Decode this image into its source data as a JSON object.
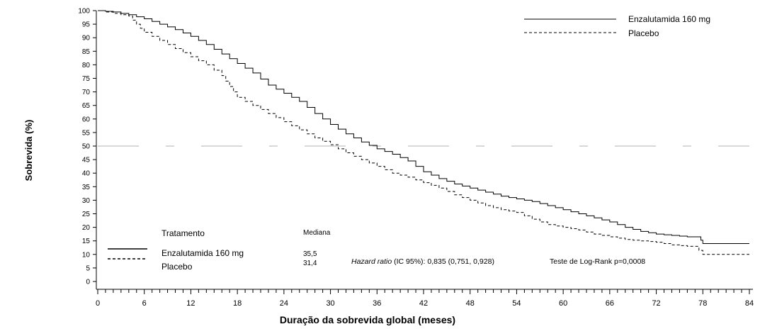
{
  "chart_data": {
    "type": "line",
    "xlabel": "Duração da sobrevida global (meses)",
    "ylabel": "Sobrevida (%)",
    "xlim": [
      0,
      84
    ],
    "ylim": [
      0,
      100
    ],
    "x_ticks": [
      0,
      6,
      12,
      18,
      24,
      30,
      36,
      42,
      48,
      54,
      60,
      66,
      72,
      78,
      84
    ],
    "y_ticks": [
      0,
      5,
      10,
      15,
      20,
      25,
      30,
      35,
      40,
      45,
      50,
      55,
      60,
      65,
      70,
      75,
      80,
      85,
      90,
      95,
      100
    ],
    "reference_line_y": 50,
    "legend_placement": "top-right",
    "series": [
      {
        "name": "Enzalutamida 160 mg",
        "line_style": "solid",
        "color": "#000000",
        "median": "35,5",
        "points": [
          [
            0,
            100
          ],
          [
            2,
            99.5
          ],
          [
            4,
            98.5
          ],
          [
            6,
            97
          ],
          [
            8,
            95
          ],
          [
            10,
            93
          ],
          [
            12,
            90.5
          ],
          [
            14,
            87.5
          ],
          [
            16,
            84
          ],
          [
            18,
            80.5
          ],
          [
            20,
            77
          ],
          [
            22,
            72.5
          ],
          [
            24,
            69.5
          ],
          [
            26,
            66.5
          ],
          [
            28,
            62
          ],
          [
            30,
            58
          ],
          [
            32,
            54.5
          ],
          [
            34,
            51.5
          ],
          [
            36,
            49
          ],
          [
            38,
            47
          ],
          [
            40,
            44.5
          ],
          [
            42,
            40.5
          ],
          [
            44,
            38
          ],
          [
            46,
            36
          ],
          [
            48,
            34.5
          ],
          [
            50,
            33
          ],
          [
            52,
            31.5
          ],
          [
            54,
            30.5
          ],
          [
            56,
            29.5
          ],
          [
            58,
            28
          ],
          [
            60,
            26.5
          ],
          [
            62,
            25
          ],
          [
            64,
            23.5
          ],
          [
            66,
            22
          ],
          [
            68,
            20
          ],
          [
            70,
            18.5
          ],
          [
            72,
            17.5
          ],
          [
            74,
            17
          ],
          [
            76,
            16.5
          ],
          [
            77.5,
            16.5
          ],
          [
            78,
            14
          ],
          [
            84,
            14
          ]
        ]
      },
      {
        "name": "Placebo",
        "line_style": "dashed",
        "color": "#000000",
        "median": "31,4",
        "points": [
          [
            0,
            100
          ],
          [
            2,
            99
          ],
          [
            4,
            98
          ],
          [
            5,
            95
          ],
          [
            6,
            92
          ],
          [
            8,
            89
          ],
          [
            10,
            86
          ],
          [
            12,
            83
          ],
          [
            14,
            80
          ],
          [
            16,
            76
          ],
          [
            17,
            72
          ],
          [
            18,
            68
          ],
          [
            20,
            65
          ],
          [
            22,
            62
          ],
          [
            24,
            59
          ],
          [
            26,
            56
          ],
          [
            28,
            53
          ],
          [
            30,
            50.5
          ],
          [
            32,
            47.5
          ],
          [
            34,
            45
          ],
          [
            36,
            42.5
          ],
          [
            38,
            40
          ],
          [
            40,
            38.5
          ],
          [
            42,
            36.5
          ],
          [
            44,
            34.5
          ],
          [
            46,
            32
          ],
          [
            48,
            30
          ],
          [
            50,
            28
          ],
          [
            52,
            26.5
          ],
          [
            54,
            25.5
          ],
          [
            56,
            23
          ],
          [
            58,
            21
          ],
          [
            60,
            20
          ],
          [
            62,
            19
          ],
          [
            64,
            17.5
          ],
          [
            66,
            16.5
          ],
          [
            68,
            15.5
          ],
          [
            70,
            15
          ],
          [
            72,
            14.5
          ],
          [
            74,
            13.5
          ],
          [
            76,
            13
          ],
          [
            77,
            13
          ],
          [
            78,
            10
          ],
          [
            84,
            10
          ]
        ]
      }
    ]
  },
  "legend_top": {
    "items": [
      "Enzalutamida 160 mg",
      "Placebo"
    ]
  },
  "legend_bottom": {
    "header": "Tratamento",
    "median_header": "Mediana",
    "items": [
      {
        "label": "Enzalutamida 160 mg",
        "median": "35,5"
      },
      {
        "label": "Placebo",
        "median": "31,4"
      }
    ]
  },
  "annotations": {
    "hazard_italic": "Hazard ratio",
    "hazard_rest": " (IC 95%): 0,835 (0,751, 0,928)",
    "logrank": "Teste de Log-Rank p=0,0008"
  }
}
